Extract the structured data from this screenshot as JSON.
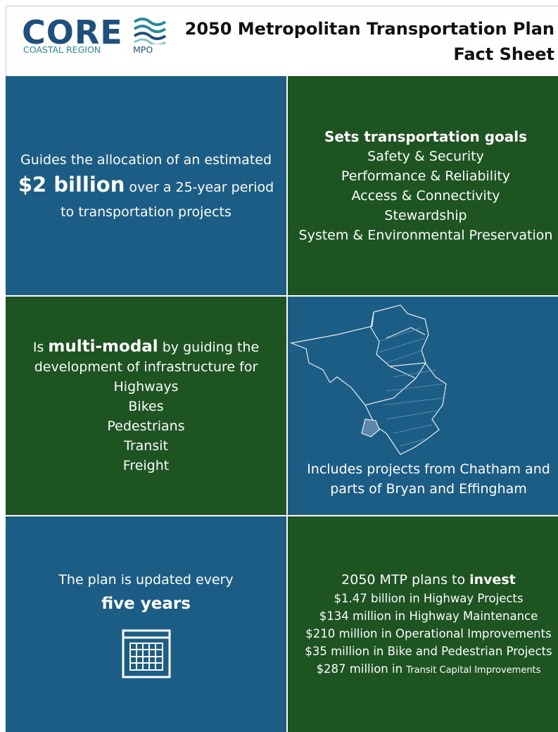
{
  "header": {
    "logo": {
      "word": "CORE",
      "region": "COASTAL REGION",
      "org": "MPO"
    },
    "title": "2050 Metropolitan Transportation Plan",
    "subtitle": "Fact Sheet"
  },
  "cells": {
    "allocation": {
      "line1": "Guides the allocation of an estimated",
      "amount": "$2 billion",
      "line2": " over a 25-year period",
      "line3": "to transportation projects"
    },
    "goals": {
      "heading": "Sets transportation goals",
      "items": [
        "Safety & Security",
        "Performance & Reliability",
        "Access & Connectivity",
        "Stewardship",
        "System & Environmental Preservation"
      ]
    },
    "modes": {
      "lead": "Is ",
      "emphasis": "multi-modal",
      "rest": " by guiding the",
      "line2": "development of infrastructure for",
      "items": [
        "Highways",
        "Bikes",
        "Pedestrians",
        "Transit",
        "Freight"
      ]
    },
    "area": {
      "line1": "Includes projects from Chatham and",
      "line2": "parts of Bryan and Effingham"
    },
    "update": {
      "line1": "The plan is updated every",
      "emphasis": "five years"
    },
    "invest": {
      "lead": "2050 MTP plans to ",
      "emphasis": "invest",
      "items": [
        "$1.47 billion in Highway Projects",
        "$134 million in Highway Maintenance",
        "$210 million in Operational Improvements",
        "$35 million in Bike and Pedestrian Projects"
      ],
      "last_lead": "$287 million in ",
      "last_rest": "Transit Capital Improvements"
    }
  }
}
